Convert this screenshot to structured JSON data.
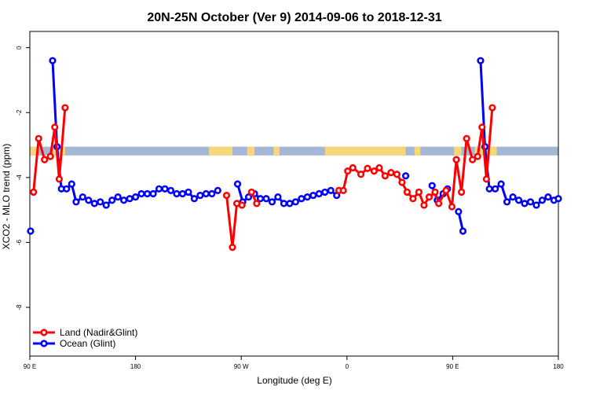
{
  "colors": {
    "land": "#ff0000",
    "ocean": "#0000ff",
    "band_ocean": "#a4b8d6",
    "band_land": "#f5d77a"
  },
  "chart_data": {
    "type": "line",
    "title": "20N-25N October (Ver 9)   2014-09-06 to 2018-12-31",
    "xlabel": "Longitude (deg E)",
    "ylabel": "XCO2 - MLO trend (ppm)",
    "xlim": [
      90,
      450
    ],
    "ylim": [
      -9.5,
      0.5
    ],
    "x_ticks": [
      {
        "value": 90,
        "label": "90 E"
      },
      {
        "value": 162,
        "label": "180"
      },
      {
        "value": 234,
        "label": "90 W"
      },
      {
        "value": 306,
        "label": "0"
      },
      {
        "value": 378,
        "label": "90 E"
      },
      {
        "value": 450,
        "label": "180"
      }
    ],
    "y_ticks": [
      {
        "value": 0,
        "label": "0"
      },
      {
        "value": -2,
        "label": "-2"
      },
      {
        "value": -4,
        "label": "-4"
      },
      {
        "value": -6,
        "label": "-6"
      },
      {
        "value": -8,
        "label": "-8"
      }
    ],
    "legend": {
      "position": "bottom-left"
    },
    "series": [
      {
        "name": "Land (Nadir&Glint)",
        "color": "#ff0000",
        "segments": [
          [
            [
              92.5,
              -4.45
            ],
            [
              96,
              -2.8
            ],
            [
              100,
              -3.45
            ],
            [
              104,
              -3.35
            ],
            [
              107,
              -2.45
            ],
            [
              110,
              -4.05
            ],
            [
              114,
              -1.85
            ]
          ],
          [
            [
              224,
              -4.55
            ],
            [
              228,
              -6.15
            ],
            [
              231,
              -4.8
            ],
            [
              234.5,
              -4.85
            ]
          ],
          [
            [
              241,
              -4.45
            ],
            [
              244.5,
              -4.8
            ]
          ],
          [
            [
              300.5,
              -4.4
            ],
            [
              303.5,
              -4.4
            ],
            [
              306.5,
              -3.8
            ],
            [
              310,
              -3.7
            ],
            [
              315.5,
              -3.9
            ],
            [
              320,
              -3.72
            ],
            [
              324.5,
              -3.8
            ],
            [
              328,
              -3.7
            ],
            [
              332,
              -3.95
            ],
            [
              336,
              -3.85
            ],
            [
              340,
              -3.9
            ],
            [
              343.5,
              -4.15
            ],
            [
              347,
              -4.45
            ],
            [
              351,
              -4.65
            ],
            [
              355,
              -4.45
            ],
            [
              358.5,
              -4.85
            ],
            [
              362,
              -4.6
            ],
            [
              366,
              -4.45
            ],
            [
              368.5,
              -4.8
            ],
            [
              373.5,
              -4.4
            ],
            [
              377.5,
              -4.9
            ],
            [
              380.5,
              -3.45
            ],
            [
              384,
              -4.45
            ],
            [
              387.5,
              -2.8
            ],
            [
              391.5,
              -3.45
            ],
            [
              395,
              -3.35
            ],
            [
              398,
              -2.45
            ],
            [
              401,
              -4.05
            ],
            [
              405,
              -1.85
            ]
          ]
        ]
      },
      {
        "name": "Ocean (Glint)",
        "color": "#0000ff",
        "segments": [
          [
            [
              90.5,
              -5.65
            ]
          ],
          [
            [
              105.5,
              -0.4
            ],
            [
              108.5,
              -3.05
            ],
            [
              111.5,
              -4.35
            ],
            [
              115,
              -4.35
            ],
            [
              118.5,
              -4.2
            ],
            [
              121.5,
              -4.75
            ],
            [
              126,
              -4.6
            ],
            [
              130,
              -4.7
            ],
            [
              134,
              -4.8
            ],
            [
              138,
              -4.75
            ],
            [
              142,
              -4.85
            ],
            [
              146,
              -4.7
            ],
            [
              150,
              -4.6
            ],
            [
              154,
              -4.7
            ],
            [
              158,
              -4.65
            ],
            [
              162,
              -4.6
            ],
            [
              166,
              -4.5
            ],
            [
              170,
              -4.5
            ],
            [
              174,
              -4.5
            ],
            [
              178,
              -4.35
            ],
            [
              182,
              -4.35
            ],
            [
              186,
              -4.4
            ],
            [
              190,
              -4.5
            ],
            [
              194,
              -4.5
            ],
            [
              198,
              -4.45
            ],
            [
              202,
              -4.65
            ],
            [
              206,
              -4.55
            ],
            [
              210,
              -4.5
            ],
            [
              214,
              -4.5
            ],
            [
              218,
              -4.4
            ]
          ],
          [
            [
              231.5,
              -4.2
            ],
            [
              235,
              -4.75
            ],
            [
              239,
              -4.6
            ],
            [
              243,
              -4.5
            ],
            [
              247,
              -4.65
            ],
            [
              251,
              -4.65
            ],
            [
              255,
              -4.75
            ],
            [
              259,
              -4.6
            ],
            [
              263,
              -4.8
            ],
            [
              267,
              -4.8
            ],
            [
              271,
              -4.75
            ],
            [
              275,
              -4.65
            ],
            [
              279,
              -4.6
            ],
            [
              283,
              -4.55
            ],
            [
              287,
              -4.5
            ],
            [
              291,
              -4.45
            ],
            [
              295,
              -4.4
            ],
            [
              299,
              -4.55
            ]
          ],
          [
            [
              346,
              -3.95
            ]
          ],
          [
            [
              364,
              -4.25
            ],
            [
              367.5,
              -4.7
            ],
            [
              371.5,
              -4.5
            ],
            [
              374.5,
              -4.35
            ]
          ],
          [
            [
              382,
              -5.05
            ],
            [
              385,
              -5.65
            ]
          ],
          [
            [
              397,
              -0.4
            ],
            [
              400,
              -3.05
            ],
            [
              403,
              -4.35
            ],
            [
              407,
              -4.35
            ],
            [
              411,
              -4.2
            ],
            [
              415,
              -4.75
            ],
            [
              419,
              -4.6
            ],
            [
              423,
              -4.7
            ],
            [
              427,
              -4.8
            ],
            [
              431,
              -4.75
            ],
            [
              435,
              -4.85
            ],
            [
              439,
              -4.7
            ],
            [
              443,
              -4.6
            ],
            [
              447,
              -4.7
            ],
            [
              450,
              -4.65
            ]
          ]
        ]
      }
    ],
    "background_band": {
      "y_top": -3.05,
      "y_bottom": -3.32
    }
  }
}
